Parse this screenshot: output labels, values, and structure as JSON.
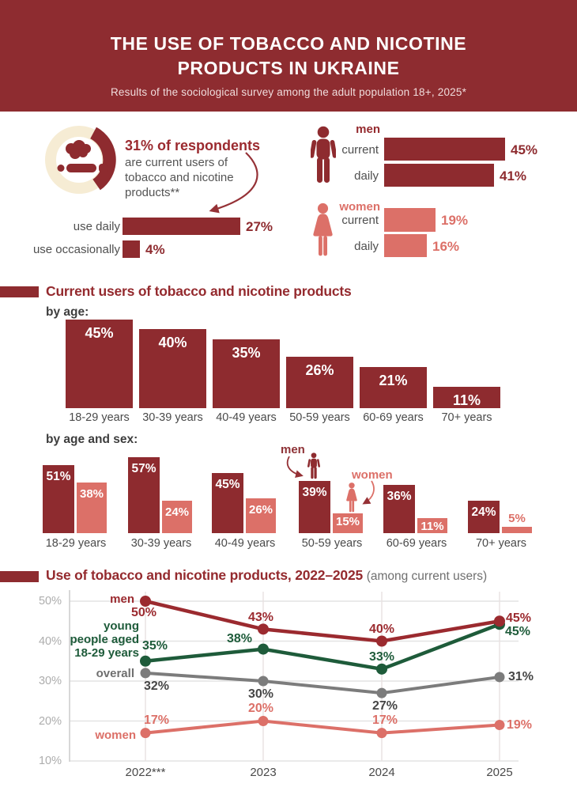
{
  "header": {
    "title_line1": "THE USE OF TOBACCO AND NICOTINE",
    "title_line2": "PRODUCTS IN UKRAINE",
    "subtitle": "Results of the sociological survey among the adult population 18+, 2025*"
  },
  "overview": {
    "donut_pct": 31,
    "headline": "31% of respondents",
    "description": "are current users of tobacco and nicotine products**",
    "rows": [
      {
        "label": "use daily",
        "value": 27
      },
      {
        "label": "use occasionally",
        "value": 4
      }
    ]
  },
  "by_sex": {
    "men": {
      "label": "men",
      "rows": [
        {
          "label": "current",
          "value": 45
        },
        {
          "label": "daily",
          "value": 41
        }
      ]
    },
    "women": {
      "label": "women",
      "rows": [
        {
          "label": "current",
          "value": 19
        },
        {
          "label": "daily",
          "value": 16
        }
      ]
    }
  },
  "sections": {
    "users_heading": "Current users of tobacco and nicotine products",
    "by_age": "by age:",
    "by_age_sex": "by age and sex:",
    "men_annotation": "men",
    "women_annotation": "women",
    "trend_heading": "Use of tobacco and nicotine products, 2022–2025",
    "trend_suffix": "(among current users)"
  },
  "icons": {
    "donut_center": "cigarette-smoke-icon",
    "men": "man-pictogram-icon",
    "women": "woman-pictogram-icon"
  },
  "colors": {
    "dark_red": "#8e2b2f",
    "banner_red": "#8e2c30",
    "heading_red": "#942a2e",
    "line_red": "#9b2a2f",
    "salmon": "#dc7068",
    "green": "#1e5b3a",
    "gray_line": "#7c7c7c",
    "cream": "#f6ecd4"
  },
  "chart_data": [
    {
      "type": "bar",
      "title": "by age:",
      "categories": [
        "18-29 years",
        "30-39 years",
        "40-49 years",
        "50-59 years",
        "60-69 years",
        "70+ years"
      ],
      "values": [
        45,
        40,
        35,
        26,
        21,
        11
      ],
      "unit": "%"
    },
    {
      "type": "bar",
      "title": "by age and sex:",
      "categories": [
        "18-29 years",
        "30-39 years",
        "40-49 years",
        "50-59 years",
        "60-69 years",
        "70+ years"
      ],
      "series": [
        {
          "name": "men",
          "values": [
            51,
            57,
            45,
            39,
            36,
            24
          ]
        },
        {
          "name": "women",
          "values": [
            38,
            24,
            26,
            15,
            11,
            5
          ]
        }
      ],
      "unit": "%"
    },
    {
      "type": "line",
      "title": "Use of tobacco and nicotine products, 2022–2025 (among current users)",
      "x": [
        "2022***",
        "2023",
        "2024",
        "2025"
      ],
      "series": [
        {
          "name": "men",
          "values": [
            50,
            43,
            40,
            45
          ],
          "color": "#9b2a2f"
        },
        {
          "name": "young\npeople aged\n18-29 years",
          "values": [
            35,
            38,
            33,
            45
          ],
          "color": "#1e5b3a"
        },
        {
          "name": "overall",
          "values": [
            32,
            30,
            27,
            31
          ],
          "color": "#7c7c7c"
        },
        {
          "name": "women",
          "values": [
            17,
            20,
            17,
            19
          ],
          "color": "#dc7068"
        }
      ],
      "ylim": [
        10,
        50
      ],
      "yticks": [
        10,
        20,
        30,
        40,
        50
      ],
      "grid": true,
      "legend_position": "inline-left"
    }
  ]
}
